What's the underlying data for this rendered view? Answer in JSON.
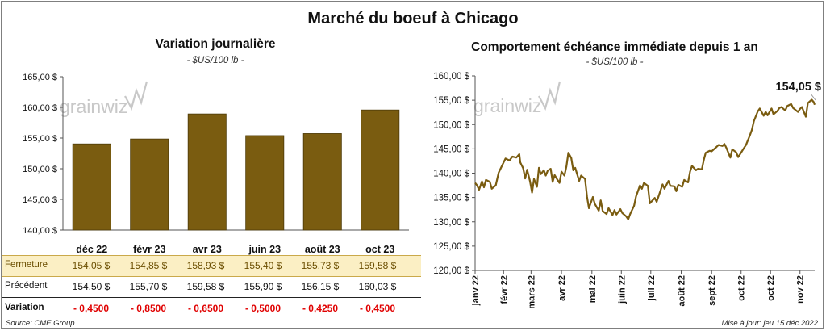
{
  "title": "Marché du boeuf à Chicago",
  "left_chart": {
    "title": "Variation journalière",
    "unit": "- $US/100 lb -",
    "watermark": "grainwiz"
  },
  "right_chart": {
    "title": "Comportement échéance immédiate depuis 1 an",
    "unit": "- $US/100 lb -",
    "watermark": "grainwiz",
    "last_label": "154,05 $"
  },
  "table": {
    "rows": [
      {
        "label": "Fermeture",
        "values": [
          "154,05  $",
          "154,85  $",
          "158,93  $",
          "155,40  $",
          "155,73  $",
          "159,58  $"
        ]
      },
      {
        "label": "Précédent",
        "values": [
          "154,50  $",
          "155,70  $",
          "159,58  $",
          "155,90  $",
          "156,15  $",
          "160,03  $"
        ]
      },
      {
        "label": "Variation",
        "values": [
          "- 0,4500",
          "- 0,8500",
          "- 0,6500",
          "- 0,5000",
          "- 0,4250",
          "- 0,4500"
        ]
      }
    ]
  },
  "footer": {
    "source": "Source: CME Group",
    "updated": "Mise à jour: jeu 15 déc 2022"
  },
  "colors": {
    "bar": "#7a5c10",
    "bar_stroke": "#4d3a08",
    "line": "#7a5c10",
    "fermeture_bg": "#fbefc4",
    "negative": "#e00000",
    "watermark": "#c8c8c8"
  },
  "chart_data": [
    {
      "type": "bar",
      "title": "Variation journalière",
      "ylabel": "- $US/100 lb -",
      "categories": [
        "déc 22",
        "févr 23",
        "avr 23",
        "juin 23",
        "août 23",
        "oct 23"
      ],
      "values": [
        154.05,
        154.85,
        158.93,
        155.4,
        155.73,
        159.58
      ],
      "ylim": [
        140,
        165
      ],
      "yticks": [
        140,
        145,
        150,
        155,
        160,
        165
      ],
      "ytick_labels": [
        "140,00 $",
        "145,00 $",
        "150,00 $",
        "155,00 $",
        "160,00 $",
        "165,00 $"
      ],
      "grid": false,
      "legend": "none"
    },
    {
      "type": "line",
      "title": "Comportement échéance immédiate depuis 1 an",
      "ylabel": "- $US/100 lb -",
      "ylim": [
        120,
        160
      ],
      "yticks": [
        120,
        125,
        130,
        135,
        140,
        145,
        150,
        155,
        160
      ],
      "ytick_labels": [
        "120,00 $",
        "125,00 $",
        "130,00 $",
        "135,00 $",
        "140,00 $",
        "145,00 $",
        "150,00 $",
        "155,00 $",
        "160,00 $"
      ],
      "x_tick_labels": [
        "janv 22",
        "févr 22",
        "mars 22",
        "avr 22",
        "mai 22",
        "juin 22",
        "juil 22",
        "août 22",
        "sept 22",
        "oct 22",
        "oct 22",
        "nov 22"
      ],
      "x_tick_dates": [
        "2022-01-03",
        "2022-02-01",
        "2022-03-01",
        "2022-04-01",
        "2022-05-02",
        "2022-06-01",
        "2022-07-01",
        "2022-08-01",
        "2022-09-01",
        "2022-10-01",
        "2022-10-31",
        "2022-11-30"
      ],
      "x_range": [
        "2022-01-03",
        "2022-12-15"
      ],
      "grid": false,
      "legend": "none",
      "series": [
        {
          "points": [
            [
              "2022-01-03",
              138.0
            ],
            [
              "2022-01-05",
              137.5
            ],
            [
              "2022-01-07",
              136.6
            ],
            [
              "2022-01-10",
              138.3
            ],
            [
              "2022-01-12",
              137.1
            ],
            [
              "2022-01-14",
              138.6
            ],
            [
              "2022-01-18",
              138.2
            ],
            [
              "2022-01-20",
              136.8
            ],
            [
              "2022-01-24",
              137.5
            ],
            [
              "2022-01-27",
              140.1
            ],
            [
              "2022-01-31",
              141.8
            ],
            [
              "2022-02-03",
              143.0
            ],
            [
              "2022-02-07",
              142.6
            ],
            [
              "2022-02-10",
              143.4
            ],
            [
              "2022-02-14",
              143.2
            ],
            [
              "2022-02-17",
              143.9
            ],
            [
              "2022-02-18",
              142.2
            ],
            [
              "2022-02-21",
              141.0
            ],
            [
              "2022-02-23",
              138.9
            ],
            [
              "2022-02-25",
              140.7
            ],
            [
              "2022-02-28",
              138.3
            ],
            [
              "2022-03-02",
              136.0
            ],
            [
              "2022-03-04",
              138.8
            ],
            [
              "2022-03-07",
              137.2
            ],
            [
              "2022-03-09",
              141.1
            ],
            [
              "2022-03-11",
              139.8
            ],
            [
              "2022-03-14",
              140.6
            ],
            [
              "2022-03-16",
              139.5
            ],
            [
              "2022-03-18",
              140.5
            ],
            [
              "2022-03-21",
              140.9
            ],
            [
              "2022-03-23",
              138.2
            ],
            [
              "2022-03-25",
              139.6
            ],
            [
              "2022-03-28",
              138.6
            ],
            [
              "2022-03-30",
              138.0
            ],
            [
              "2022-04-01",
              140.3
            ],
            [
              "2022-04-04",
              139.5
            ],
            [
              "2022-04-06",
              141.4
            ],
            [
              "2022-04-08",
              144.2
            ],
            [
              "2022-04-11",
              143.1
            ],
            [
              "2022-04-13",
              140.6
            ],
            [
              "2022-04-15",
              141.1
            ],
            [
              "2022-04-19",
              138.4
            ],
            [
              "2022-04-21",
              139.5
            ],
            [
              "2022-04-25",
              138.8
            ],
            [
              "2022-04-27",
              135.2
            ],
            [
              "2022-04-29",
              132.8
            ],
            [
              "2022-05-03",
              135.1
            ],
            [
              "2022-05-05",
              133.7
            ],
            [
              "2022-05-09",
              132.3
            ],
            [
              "2022-05-11",
              134.4
            ],
            [
              "2022-05-13",
              132.2
            ],
            [
              "2022-05-17",
              131.6
            ],
            [
              "2022-05-19",
              132.8
            ],
            [
              "2022-05-23",
              131.4
            ],
            [
              "2022-05-25",
              132.4
            ],
            [
              "2022-05-27",
              131.5
            ],
            [
              "2022-05-31",
              132.6
            ],
            [
              "2022-06-02",
              131.8
            ],
            [
              "2022-06-06",
              131.1
            ],
            [
              "2022-06-08",
              130.5
            ],
            [
              "2022-06-10",
              131.6
            ],
            [
              "2022-06-14",
              133.3
            ],
            [
              "2022-06-16",
              135.2
            ],
            [
              "2022-06-20",
              137.5
            ],
            [
              "2022-06-22",
              136.8
            ],
            [
              "2022-06-24",
              138.0
            ],
            [
              "2022-06-28",
              137.4
            ],
            [
              "2022-06-30",
              133.8
            ],
            [
              "2022-07-05",
              134.9
            ],
            [
              "2022-07-07",
              134.1
            ],
            [
              "2022-07-11",
              136.5
            ],
            [
              "2022-07-13",
              137.7
            ],
            [
              "2022-07-15",
              136.8
            ],
            [
              "2022-07-19",
              138.4
            ],
            [
              "2022-07-21",
              137.4
            ],
            [
              "2022-07-25",
              137.3
            ],
            [
              "2022-07-27",
              136.3
            ],
            [
              "2022-07-29",
              137.6
            ],
            [
              "2022-08-02",
              137.2
            ],
            [
              "2022-08-04",
              138.6
            ],
            [
              "2022-08-08",
              138.1
            ],
            [
              "2022-08-10",
              140.3
            ],
            [
              "2022-08-12",
              141.5
            ],
            [
              "2022-08-16",
              140.6
            ],
            [
              "2022-08-18",
              140.9
            ],
            [
              "2022-08-22",
              140.8
            ],
            [
              "2022-08-24",
              142.7
            ],
            [
              "2022-08-26",
              144.2
            ],
            [
              "2022-08-30",
              144.6
            ],
            [
              "2022-09-01",
              144.5
            ],
            [
              "2022-09-06",
              145.4
            ],
            [
              "2022-09-08",
              145.8
            ],
            [
              "2022-09-12",
              145.6
            ],
            [
              "2022-09-14",
              146.0
            ],
            [
              "2022-09-16",
              145.2
            ],
            [
              "2022-09-20",
              143.2
            ],
            [
              "2022-09-22",
              144.9
            ],
            [
              "2022-09-26",
              144.3
            ],
            [
              "2022-09-28",
              143.3
            ],
            [
              "2022-09-30",
              143.9
            ],
            [
              "2022-10-04",
              145.2
            ],
            [
              "2022-10-06",
              145.8
            ],
            [
              "2022-10-10",
              147.8
            ],
            [
              "2022-10-12",
              148.9
            ],
            [
              "2022-10-14",
              150.7
            ],
            [
              "2022-10-18",
              152.7
            ],
            [
              "2022-10-20",
              153.3
            ],
            [
              "2022-10-24",
              151.8
            ],
            [
              "2022-10-26",
              152.6
            ],
            [
              "2022-10-28",
              151.9
            ],
            [
              "2022-11-01",
              153.3
            ],
            [
              "2022-11-03",
              152.1
            ],
            [
              "2022-11-07",
              152.8
            ],
            [
              "2022-11-09",
              153.4
            ],
            [
              "2022-11-11",
              153.6
            ],
            [
              "2022-11-15",
              152.9
            ],
            [
              "2022-11-17",
              153.8
            ],
            [
              "2022-11-21",
              154.2
            ],
            [
              "2022-11-23",
              153.4
            ],
            [
              "2022-11-28",
              152.6
            ],
            [
              "2022-11-30",
              153.2
            ],
            [
              "2022-12-02",
              153.6
            ],
            [
              "2022-12-06",
              151.6
            ],
            [
              "2022-12-08",
              154.4
            ],
            [
              "2022-12-12",
              155.1
            ],
            [
              "2022-12-14",
              154.6
            ],
            [
              "2022-12-15",
              154.05
            ]
          ]
        }
      ]
    }
  ]
}
